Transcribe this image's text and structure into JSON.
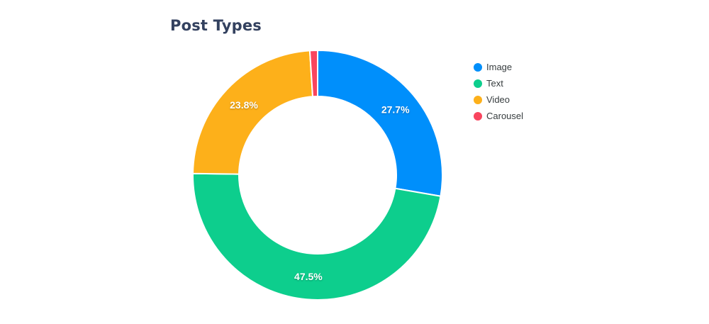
{
  "chart_data": {
    "type": "pie",
    "variant": "donut",
    "title": "Post Types",
    "labels": [
      "Image",
      "Text",
      "Video",
      "Carousel"
    ],
    "values": [
      27.7,
      47.5,
      23.8,
      1.0
    ],
    "data_labels": [
      "27.7%",
      "47.5%",
      "23.8%",
      ""
    ],
    "colors": [
      "#008FFB",
      "#0DCE8D",
      "#FDB01A",
      "#F9455E"
    ],
    "legend_position": "right",
    "background": "#ffffff",
    "title_color": "#33415f",
    "legend_text_color": "#373d3f",
    "data_label_color": "#ffffff",
    "donut_hole_ratio": 0.63
  }
}
